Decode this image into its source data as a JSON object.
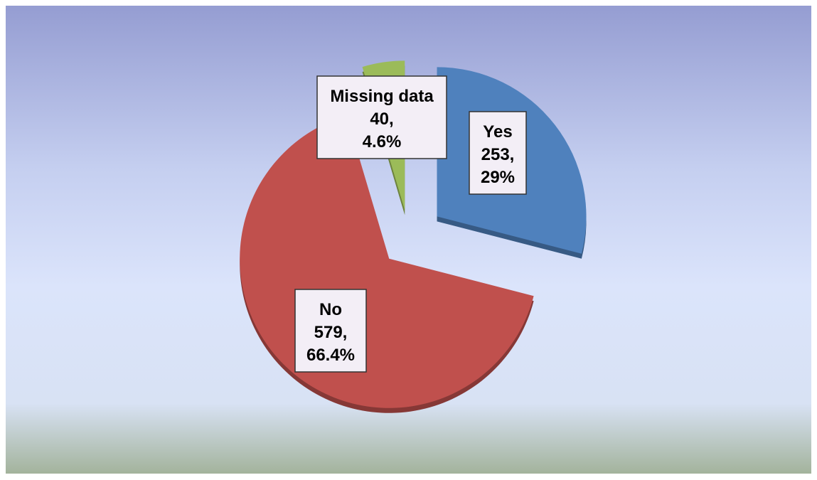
{
  "chart_data": {
    "type": "pie",
    "categories": [
      "Yes",
      "No",
      "Missing data"
    ],
    "values": [
      253,
      579,
      40
    ],
    "value_labels": [
      "253,",
      "579,",
      "40,"
    ],
    "percents": [
      29,
      66.4,
      4.6
    ],
    "percent_labels": [
      "29%",
      "66.4%",
      "4.6%"
    ],
    "colors": [
      "#4f81bd",
      "#c0504d",
      "#9bbb59"
    ]
  }
}
